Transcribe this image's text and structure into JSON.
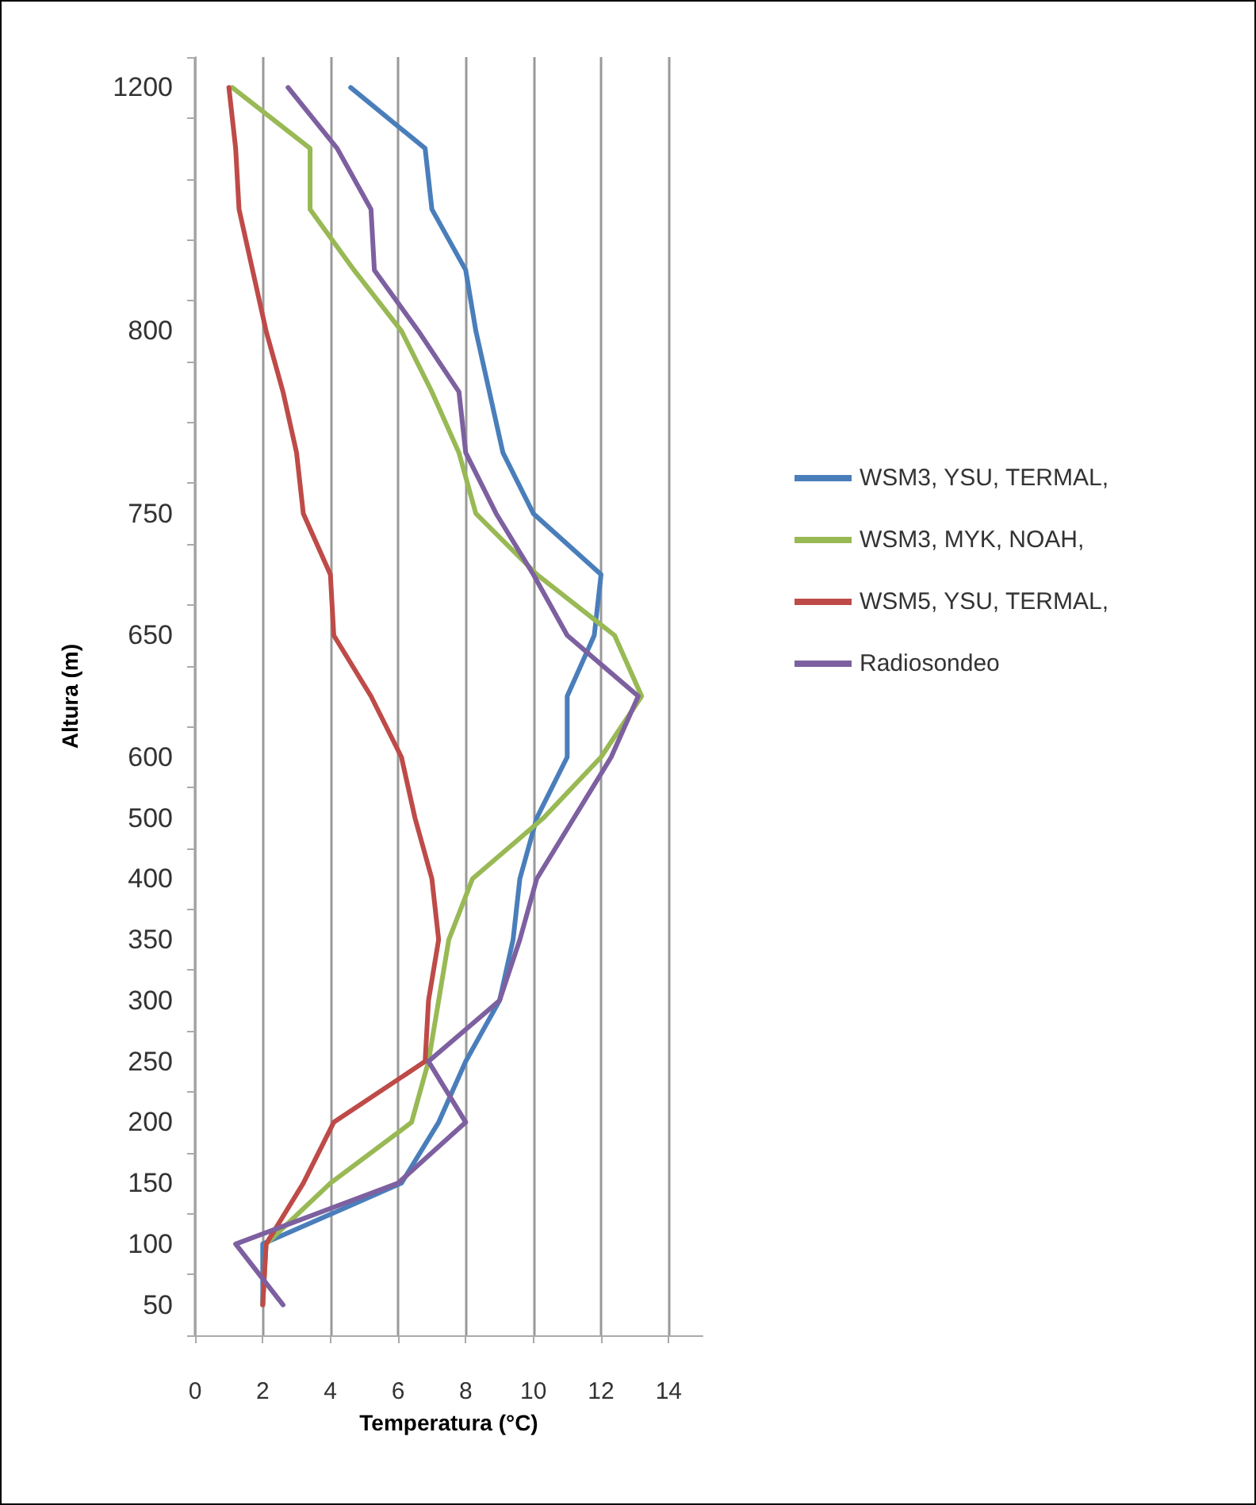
{
  "chart_data": {
    "type": "line",
    "xlabel": "Temperatura (°C)",
    "ylabel": "Altura (m)",
    "orientation": "horizontal",
    "categories": [
      "1200",
      null,
      null,
      null,
      "800",
      null,
      null,
      "750",
      null,
      "650",
      null,
      "600",
      "500",
      "400",
      "350",
      "300",
      "250",
      "200",
      "150",
      "100",
      "50"
    ],
    "xlim": [
      0,
      15
    ],
    "xticks": [
      0,
      2,
      4,
      6,
      8,
      10,
      12,
      14
    ],
    "grid": "x",
    "legend": "right",
    "marker": "none",
    "line_style": "solid",
    "series": [
      {
        "name": "WSM3, YSU, TERMAL,",
        "color": "#4a7ebb",
        "values": [
          4.6,
          6.8,
          7.0,
          8.0,
          8.3,
          8.7,
          9.1,
          10.0,
          12.0,
          11.8,
          11.0,
          11.0,
          10.1,
          9.6,
          9.4,
          9.0,
          8.0,
          7.2,
          6.1,
          2.0,
          2.0
        ]
      },
      {
        "name": "WSM3, MYK, NOAH,",
        "color": "#98b954",
        "values": [
          1.1,
          3.4,
          3.4,
          4.7,
          6.1,
          7.0,
          7.8,
          8.3,
          10.1,
          12.4,
          13.2,
          12.0,
          10.3,
          8.2,
          7.5,
          7.2,
          6.9,
          6.4,
          4.0,
          2.1,
          2.0
        ]
      },
      {
        "name": "WSM5, YSU, TERMAL,",
        "color": "#be4b48",
        "values": [
          1.0,
          1.2,
          1.3,
          1.7,
          2.1,
          2.6,
          3.0,
          3.2,
          4.0,
          4.1,
          5.2,
          6.1,
          6.5,
          7.0,
          7.2,
          6.9,
          6.8,
          4.1,
          3.2,
          2.1,
          2.0
        ]
      },
      {
        "name": "Radiosondeo",
        "color": "#7d60a0",
        "values": [
          2.75,
          4.2,
          5.2,
          5.3,
          6.6,
          7.8,
          8.0,
          8.9,
          10.0,
          11.0,
          13.1,
          12.3,
          11.2,
          10.1,
          9.6,
          9.0,
          6.9,
          8.0,
          6.0,
          1.2,
          2.6
        ]
      }
    ]
  }
}
